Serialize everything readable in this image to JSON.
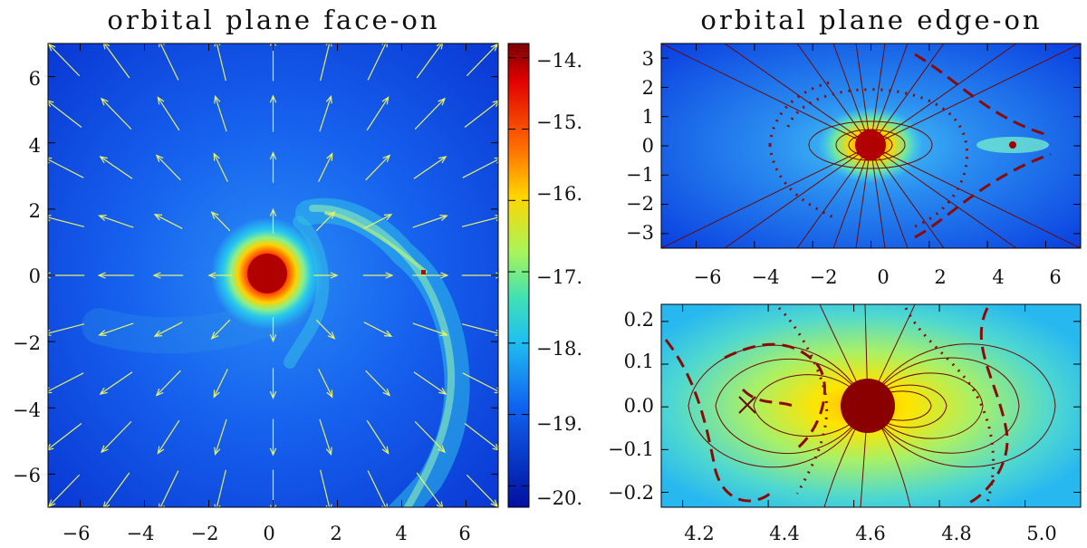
{
  "chart_data": [
    {
      "type": "heatmap",
      "title": "orbital plane face-on",
      "xlim": [
        -7,
        7
      ],
      "ylim": [
        -7,
        7
      ],
      "x_ticks": [
        "−6",
        "−4",
        "−2",
        "0",
        "2",
        "4",
        "6"
      ],
      "y_ticks": [
        "6",
        "4",
        "2",
        "0",
        "−2",
        "−4",
        "−6"
      ],
      "x_tick_values": [
        -6,
        -4,
        -2,
        0,
        2,
        4,
        6
      ],
      "y_tick_values": [
        6,
        4,
        2,
        0,
        -2,
        -4,
        -6
      ],
      "features": {
        "primary_star": {
          "x": 0,
          "y": 0,
          "radius": 0.55
        },
        "companion": {
          "x": 4.7,
          "y": 0.1
        },
        "velocity_field": "radial outflow arrows on grid from -6.5 to 6.5, step 1.625"
      },
      "colorbar": {
        "range": [
          -20.3,
          -13.8
        ],
        "ticks": [
          "−14.",
          "−15.",
          "−16.",
          "−17.",
          "−18.",
          "−19.",
          "−20."
        ],
        "tick_values": [
          -14,
          -15,
          -16,
          -17,
          -18,
          -19,
          -20
        ]
      }
    },
    {
      "type": "heatmap",
      "title": "orbital plane edge-on",
      "xlim": [
        -7.2,
        7.2
      ],
      "ylim": [
        -3.5,
        3.5
      ],
      "x_ticks": [
        "−6",
        "−4",
        "−2",
        "0",
        "2",
        "4",
        "6"
      ],
      "y_ticks": [
        "3",
        "2",
        "1",
        "0",
        "−1",
        "−2",
        "−3"
      ],
      "x_tick_values": [
        -6,
        -4,
        -2,
        0,
        2,
        4,
        6
      ],
      "y_tick_values": [
        3,
        2,
        1,
        0,
        -1,
        -2,
        -3
      ],
      "features": {
        "primary_star": {
          "x": 0,
          "y": 0
        },
        "companion": {
          "x": 4.8,
          "y": 0
        }
      }
    },
    {
      "type": "heatmap",
      "title": "",
      "xlim": [
        4.15,
        5.13
      ],
      "ylim": [
        -0.235,
        0.24
      ],
      "x_ticks": [
        "4.2",
        "4.4",
        "4.6",
        "4.8",
        "5.0"
      ],
      "y_ticks": [
        "0.2",
        "0.1",
        "0.0",
        "−0.1",
        "−0.2"
      ],
      "x_tick_values": [
        4.2,
        4.4,
        4.6,
        4.8,
        5.0
      ],
      "y_tick_values": [
        0.2,
        0.1,
        0.0,
        -0.1,
        -0.2
      ],
      "features": {
        "companion": {
          "x": 4.64,
          "y": 0.0
        },
        "marker_x": {
          "x": 4.32,
          "y": -0.02
        }
      }
    }
  ],
  "colors": {
    "background_blue": "#0c3fe6",
    "arrow": "#e6f26a",
    "contour": "#6b0a05",
    "star_core": "#8a0000"
  }
}
